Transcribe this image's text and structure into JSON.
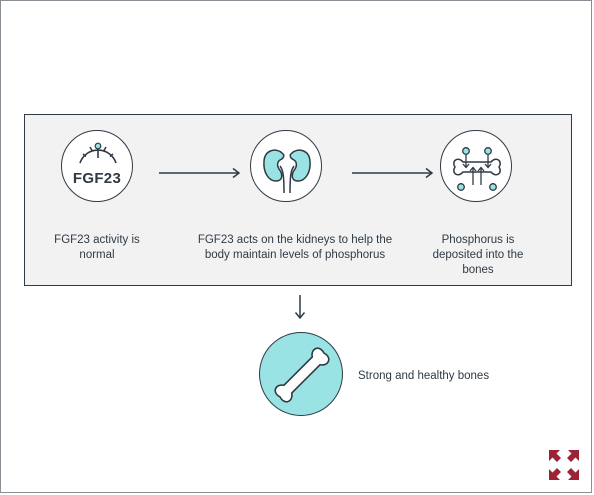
{
  "steps": [
    {
      "icon": "fgf23-gauge-icon",
      "icon_text": "FGF23",
      "caption": "FGF23 activity is normal"
    },
    {
      "icon": "kidneys-icon",
      "caption": "FGF23 acts on the kidneys to help the body maintain levels of phosphorus"
    },
    {
      "icon": "bone-deposit-icon",
      "caption": "Phosphorus is deposited into the bones"
    }
  ],
  "outcome": {
    "icon": "bone-icon",
    "caption": "Strong and healthy bones"
  },
  "colors": {
    "ink": "#2f3a45",
    "panel_bg": "#f2f2f2",
    "accent_teal": "#9ae3e4",
    "brand": "#9b2335"
  },
  "brand_logo": "four-arrows-logo-icon"
}
